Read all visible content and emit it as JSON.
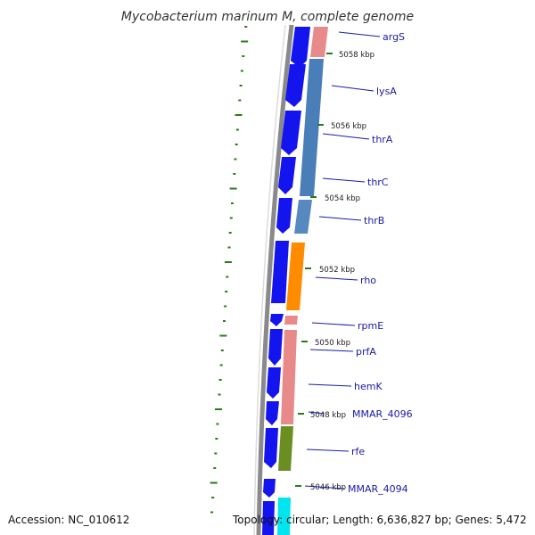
{
  "title": "Mycobacterium marinum M, complete genome",
  "footer": {
    "accession": "Accession: NC_010612",
    "summary": "Topology: circular; Length: 6,636,827 bp; Genes: 5,472"
  },
  "colors": {
    "backbone": "#888888",
    "forward_gene": "#1010ee",
    "tick_mark": "#2a7a1a",
    "label_line": "#1a1aa6"
  },
  "scale_labels": [
    "5058 kbp",
    "5056 kbp",
    "5054 kbp",
    "5052 kbp",
    "5050 kbp",
    "5048 kbp",
    "5046 kbp"
  ],
  "gene_labels": [
    "argS",
    "lysA",
    "thrA",
    "thrC",
    "thrB",
    "rho",
    "rpmE",
    "prfA",
    "hemK",
    "MMAR_4096",
    "rfe",
    "MMAR_4094"
  ]
}
